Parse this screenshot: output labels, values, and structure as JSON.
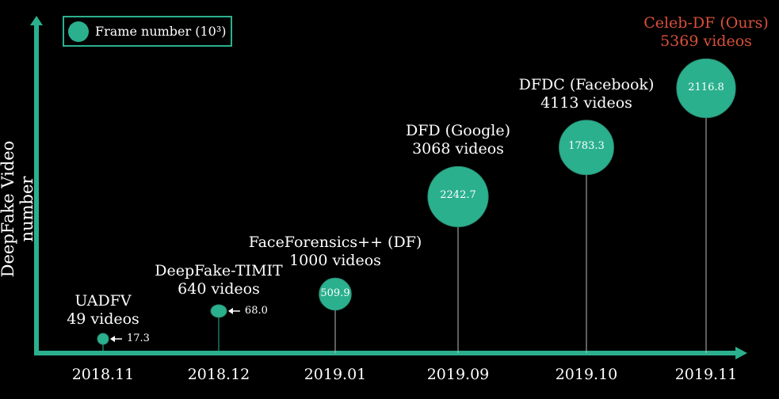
{
  "chart_data": {
    "type": "scatter",
    "subtype": "bubble-timeline",
    "ylabel": "DeepFake Video number",
    "xlabel": "",
    "legend": {
      "label": "Frame number (10³)",
      "placement": "top-left"
    },
    "categories": [
      "2018.11",
      "2018.12",
      "2019.01",
      "2019.09",
      "2019.10",
      "2019.11"
    ],
    "points": [
      {
        "date": "2018.11",
        "name": "UADFV",
        "videos_label": "49 videos",
        "videos": 49,
        "frames": 17.3,
        "frames_label": "17.3",
        "highlight": false
      },
      {
        "date": "2018.12",
        "name": "DeepFake-TIMIT",
        "videos_label": "640 videos",
        "videos": 640,
        "frames": 68.0,
        "frames_label": "68.0",
        "highlight": false
      },
      {
        "date": "2019.01",
        "name": "FaceForensics++ (DF)",
        "videos_label": "1000 videos",
        "videos": 1000,
        "frames": 509.9,
        "frames_label": "509.9",
        "highlight": false
      },
      {
        "date": "2019.09",
        "name": "DFD (Google)",
        "videos_label": "3068 videos",
        "videos": 3068,
        "frames": 2242.7,
        "frames_label": "2242.7",
        "highlight": false
      },
      {
        "date": "2019.10",
        "name": "DFDC (Facebook)",
        "videos_label": "4113 videos",
        "videos": 4113,
        "frames": 1783.3,
        "frames_label": "1783.3",
        "highlight": false
      },
      {
        "date": "2019.11",
        "name": "Celeb-DF (Ours)",
        "videos_label": "5369 videos",
        "videos": 5369,
        "frames": 2116.8,
        "frames_label": "2116.8",
        "highlight": true
      }
    ],
    "grid": false,
    "colors": {
      "bubble": "#2bb08e",
      "axis": "#2bb08e",
      "text": "#ffffff",
      "highlight": "#d9503a",
      "background": "#000000"
    }
  }
}
